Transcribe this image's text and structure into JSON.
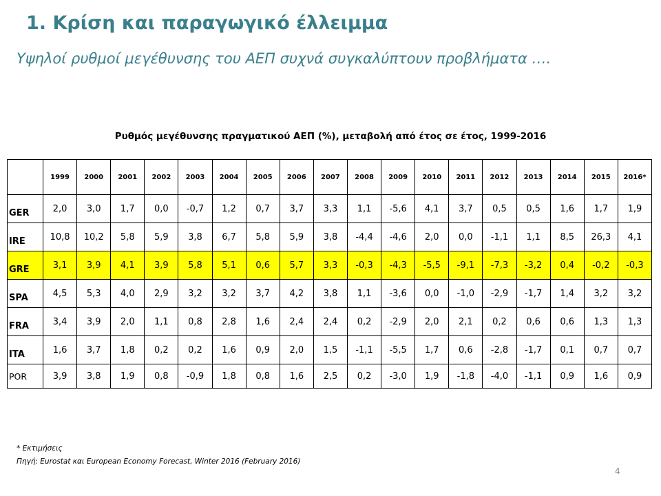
{
  "slide": {
    "title": "1. Κρίση και παραγωγικό έλλειμμα",
    "subtitle": "Υψηλοί ρυθμοί μεγέθυνσης του ΑΕΠ συχνά συγκαλύπτουν προβλήματα …."
  },
  "table": {
    "title": "Ρυθμός μεγέθυνσης πραγματικού ΑΕΠ (%), μεταβολή από έτος σε έτος, 1999-2016",
    "corner": "",
    "years": [
      "1999",
      "2000",
      "2001",
      "2002",
      "2003",
      "2004",
      "2005",
      "2006",
      "2007",
      "2008",
      "2009",
      "2010",
      "2011",
      "2012",
      "2013",
      "2014",
      "2015",
      "2016*"
    ],
    "highlight_color": "#ffff00",
    "rows": [
      {
        "country": "GER",
        "values": [
          "2,0",
          "3,0",
          "1,7",
          "0,0",
          "-0,7",
          "1,2",
          "0,7",
          "3,7",
          "3,3",
          "1,1",
          "-5,6",
          "4,1",
          "3,7",
          "0,5",
          "0,5",
          "1,6",
          "1,7",
          "1,9"
        ]
      },
      {
        "country": "IRE",
        "values": [
          "10,8",
          "10,2",
          "5,8",
          "5,9",
          "3,8",
          "6,7",
          "5,8",
          "5,9",
          "3,8",
          "-4,4",
          "-4,6",
          "2,0",
          "0,0",
          "-1,1",
          "1,1",
          "8,5",
          "26,3",
          "4,1"
        ]
      },
      {
        "country": "GRE",
        "values": [
          "3,1",
          "3,9",
          "4,1",
          "3,9",
          "5,8",
          "5,1",
          "0,6",
          "5,7",
          "3,3",
          "-0,3",
          "-4,3",
          "-5,5",
          "-9,1",
          "-7,3",
          "-3,2",
          "0,4",
          "-0,2",
          "-0,3"
        ]
      },
      {
        "country": "SPA",
        "values": [
          "4,5",
          "5,3",
          "4,0",
          "2,9",
          "3,2",
          "3,2",
          "3,7",
          "4,2",
          "3,8",
          "1,1",
          "-3,6",
          "0,0",
          "-1,0",
          "-2,9",
          "-1,7",
          "1,4",
          "3,2",
          "3,2"
        ]
      },
      {
        "country": "FRA",
        "values": [
          "3,4",
          "3,9",
          "2,0",
          "1,1",
          "0,8",
          "2,8",
          "1,6",
          "2,4",
          "2,4",
          "0,2",
          "-2,9",
          "2,0",
          "2,1",
          "0,2",
          "0,6",
          "0,6",
          "1,3",
          "1,3"
        ]
      },
      {
        "country": "ITA",
        "values": [
          "1,6",
          "3,7",
          "1,8",
          "0,2",
          "0,2",
          "1,6",
          "0,9",
          "2,0",
          "1,5",
          "-1,1",
          "-5,5",
          "1,7",
          "0,6",
          "-2,8",
          "-1,7",
          "0,1",
          "0,7",
          "0,7"
        ]
      },
      {
        "country": "POR",
        "values": [
          "3,9",
          "3,8",
          "1,9",
          "0,8",
          "-0,9",
          "1,8",
          "0,8",
          "1,6",
          "2,5",
          "0,2",
          "-3,0",
          "1,9",
          "-1,8",
          "-4,0",
          "-1,1",
          "0,9",
          "1,6",
          "0,9"
        ]
      }
    ]
  },
  "footer": {
    "note": "* Εκτιμήσεις",
    "source": "Πηγή: Eurostat και European Economy Forecast, Winter 2016 (February 2016)",
    "page_number": "4"
  },
  "colors": {
    "title": "#3a7f8c",
    "highlight": "#ffff00"
  }
}
